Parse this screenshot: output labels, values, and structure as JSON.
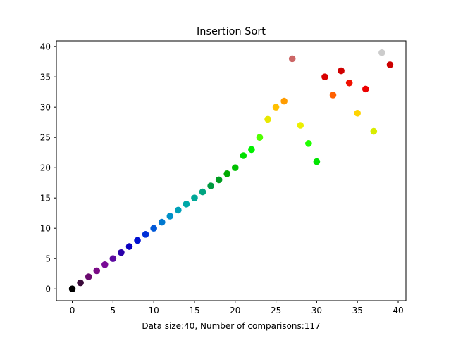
{
  "chart_data": {
    "type": "scatter",
    "title": "Insertion Sort",
    "xlabel": "Data size:40, Number of comparisons:117",
    "ylabel": "",
    "xlim": [
      -1.95,
      40.95
    ],
    "ylim": [
      -1.95,
      40.95
    ],
    "xticks": [
      0,
      5,
      10,
      15,
      20,
      25,
      30,
      35,
      40
    ],
    "yticks": [
      0,
      5,
      10,
      15,
      20,
      25,
      30,
      35,
      40
    ],
    "grid": false,
    "legend": "none",
    "points": [
      {
        "x": 0,
        "y": 0,
        "color": "#000000"
      },
      {
        "x": 1,
        "y": 1,
        "color": "#3a0a3a"
      },
      {
        "x": 2,
        "y": 2,
        "color": "#6a0a6e"
      },
      {
        "x": 3,
        "y": 3,
        "color": "#7a0a86"
      },
      {
        "x": 4,
        "y": 4,
        "color": "#7a0a96"
      },
      {
        "x": 5,
        "y": 5,
        "color": "#5c0aa0"
      },
      {
        "x": 6,
        "y": 6,
        "color": "#2a00aa"
      },
      {
        "x": 7,
        "y": 7,
        "color": "#0a00c0"
      },
      {
        "x": 8,
        "y": 8,
        "color": "#0010d0"
      },
      {
        "x": 9,
        "y": 9,
        "color": "#0030d8"
      },
      {
        "x": 10,
        "y": 10,
        "color": "#0058d8"
      },
      {
        "x": 11,
        "y": 11,
        "color": "#0078d0"
      },
      {
        "x": 12,
        "y": 12,
        "color": "#0090c8"
      },
      {
        "x": 13,
        "y": 13,
        "color": "#00a0b8"
      },
      {
        "x": 14,
        "y": 14,
        "color": "#00a8a8"
      },
      {
        "x": 15,
        "y": 15,
        "color": "#00a898"
      },
      {
        "x": 16,
        "y": 16,
        "color": "#00a480"
      },
      {
        "x": 17,
        "y": 17,
        "color": "#009a40"
      },
      {
        "x": 18,
        "y": 18,
        "color": "#009c20"
      },
      {
        "x": 19,
        "y": 19,
        "color": "#00aa00"
      },
      {
        "x": 20,
        "y": 20,
        "color": "#00c000"
      },
      {
        "x": 21,
        "y": 22,
        "color": "#00e000"
      },
      {
        "x": 22,
        "y": 23,
        "color": "#00f000"
      },
      {
        "x": 23,
        "y": 25,
        "color": "#50ff00"
      },
      {
        "x": 24,
        "y": 28,
        "color": "#e8e800"
      },
      {
        "x": 25,
        "y": 30,
        "color": "#ffc000"
      },
      {
        "x": 26,
        "y": 31,
        "color": "#ff9c00"
      },
      {
        "x": 27,
        "y": 38,
        "color": "#cc6666"
      },
      {
        "x": 28,
        "y": 27,
        "color": "#ecf000"
      },
      {
        "x": 29,
        "y": 24,
        "color": "#20ff00"
      },
      {
        "x": 30,
        "y": 21,
        "color": "#00e400"
      },
      {
        "x": 31,
        "y": 35,
        "color": "#d80000"
      },
      {
        "x": 32,
        "y": 32,
        "color": "#ff6000"
      },
      {
        "x": 33,
        "y": 36,
        "color": "#d00000"
      },
      {
        "x": 34,
        "y": 34,
        "color": "#f01000"
      },
      {
        "x": 35,
        "y": 29,
        "color": "#ffd400"
      },
      {
        "x": 36,
        "y": 33,
        "color": "#ec0000"
      },
      {
        "x": 37,
        "y": 26,
        "color": "#d8ec00"
      },
      {
        "x": 38,
        "y": 39,
        "color": "#cccccc"
      },
      {
        "x": 39,
        "y": 37,
        "color": "#cc0000"
      }
    ]
  }
}
